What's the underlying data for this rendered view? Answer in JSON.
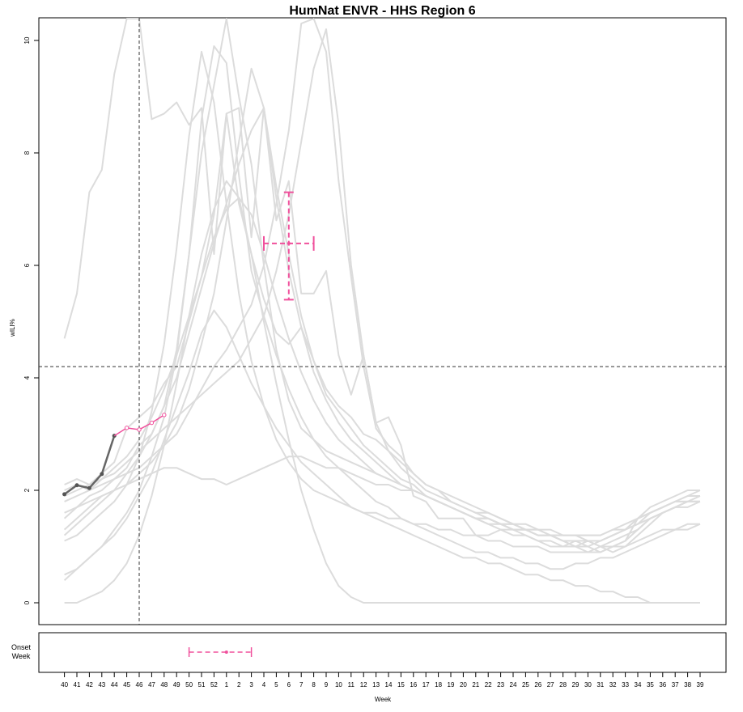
{
  "chart_data": {
    "type": "line",
    "title": "HumNat ENVR - HHS Region 6",
    "ylabel": "wILI%",
    "xlabel": "Week",
    "onset_label": [
      "Onset",
      "Week"
    ],
    "ylim": [
      0,
      10.3
    ],
    "yticks": [
      0,
      2,
      4,
      6,
      8,
      10
    ],
    "x_tick_labels": [
      "40",
      "41",
      "42",
      "43",
      "44",
      "45",
      "46",
      "47",
      "48",
      "49",
      "50",
      "51",
      "52",
      "1",
      "2",
      "3",
      "4",
      "5",
      "6",
      "7",
      "8",
      "9",
      "10",
      "11",
      "12",
      "13",
      "14",
      "15",
      "16",
      "17",
      "18",
      "19",
      "20",
      "21",
      "22",
      "23",
      "24",
      "25",
      "26",
      "27",
      "28",
      "29",
      "30",
      "31",
      "32",
      "33",
      "34",
      "35",
      "36",
      "37",
      "38",
      "39"
    ],
    "baseline": 4.2,
    "current_week": "46",
    "observed": {
      "name": "observed",
      "x": [
        "40",
        "41",
        "42",
        "43",
        "44"
      ],
      "y": [
        1.93,
        2.09,
        2.04,
        2.29,
        2.97
      ]
    },
    "forecast": {
      "name": "forecast",
      "x": [
        "44",
        "45",
        "46",
        "47",
        "48"
      ],
      "y": [
        2.97,
        3.11,
        3.08,
        3.2,
        3.34
      ]
    },
    "peak_forecast": {
      "week": "6",
      "week_low": "4",
      "week_high": "8",
      "value": 6.39,
      "value_low": 5.39,
      "value_high": 7.3
    },
    "onset_forecast": {
      "week": "1",
      "week_low": "50",
      "week_high": "3"
    },
    "historical_series": [
      {
        "x0": "40",
        "y": [
          4.7,
          5.5,
          7.3,
          7.7,
          9.4,
          10.5,
          11,
          8.6,
          8.7,
          8.9,
          8.5,
          8.8,
          6.2,
          8.7,
          8.8,
          6.5,
          8.8,
          6.8,
          7.5,
          5.5,
          5.5,
          5.9,
          4.4,
          3.7,
          4.4,
          3.2,
          3.3,
          2.8,
          1.9,
          1.8,
          1.5,
          1.5,
          1.5,
          1.2,
          1.2,
          1.3,
          1.3,
          1.2,
          1.1,
          1.1,
          1.0,
          1.1,
          1.0,
          0.9,
          1.0,
          1.1,
          1.5,
          1.6,
          1.7,
          1.8,
          1.8,
          1.9
        ]
      },
      {
        "x0": "40",
        "y": [
          2.1,
          2.2,
          2.1,
          2.3,
          2.5,
          3.1,
          3.3,
          3.5,
          3.9,
          4.2,
          5.0,
          5.8,
          6.9,
          8.7,
          7.1,
          6.2,
          5.4,
          4.8,
          4.6,
          4.9,
          4.3,
          3.8,
          3.5,
          3.3,
          3.0,
          2.9,
          2.7,
          2.5,
          2.3,
          2.1,
          2.0,
          1.8,
          1.7,
          1.6,
          1.6,
          1.5,
          1.4,
          1.4,
          1.3,
          1.3,
          1.2,
          1.2,
          1.1,
          1.1,
          1.2,
          1.3,
          1.5,
          1.6,
          1.7,
          1.8,
          1.9,
          2.0
        ]
      },
      {
        "x0": "40",
        "y": [
          1.5,
          1.7,
          1.9,
          2.0,
          2.2,
          2.4,
          2.8,
          3.0,
          3.5,
          4.5,
          6.2,
          8.0,
          9.2,
          10.5,
          9.0,
          7.8,
          6.0,
          4.5,
          3.6,
          3.1,
          2.9,
          2.7,
          2.6,
          2.5,
          2.4,
          2.3,
          2.2,
          2.1,
          2.0,
          1.9,
          1.8,
          1.7,
          1.6,
          1.5,
          1.5,
          1.4,
          1.3,
          1.3,
          1.2,
          1.2,
          1.1,
          1.1,
          1.1,
          1.0,
          1.1,
          1.2,
          1.3,
          1.5,
          1.6,
          1.7,
          1.8,
          1.8
        ]
      },
      {
        "x0": "40",
        "y": [
          1.8,
          1.9,
          2.0,
          2.1,
          2.2,
          2.3,
          2.4,
          2.6,
          2.8,
          3.0,
          3.4,
          3.8,
          4.2,
          4.5,
          4.9,
          5.3,
          6.0,
          7.1,
          8.4,
          10.3,
          10.5,
          9.8,
          7.5,
          5.8,
          4.2,
          3.1,
          2.8,
          2.6,
          2.3,
          2.1,
          2.0,
          1.9,
          1.8,
          1.7,
          1.6,
          1.5,
          1.4,
          1.3,
          1.2,
          1.2,
          1.1,
          1.0,
          1.1,
          1.0,
          0.9,
          1.0,
          1.2,
          1.4,
          1.6,
          1.7,
          1.8,
          1.8
        ]
      },
      {
        "x0": "40",
        "y": [
          1.3,
          1.5,
          1.7,
          1.9,
          2.0,
          2.1,
          2.3,
          2.5,
          2.8,
          3.2,
          3.8,
          4.6,
          5.5,
          6.8,
          8.2,
          9.5,
          8.8,
          7.4,
          6.2,
          5.1,
          4.3,
          3.7,
          3.4,
          3.1,
          2.8,
          2.6,
          2.4,
          2.2,
          2.1,
          1.9,
          1.8,
          1.7,
          1.6,
          1.5,
          1.4,
          1.3,
          1.2,
          1.2,
          1.1,
          1.0,
          1.0,
          1.0,
          0.9,
          1.0,
          1.0,
          1.1,
          1.3,
          1.5,
          1.6,
          1.7,
          1.8,
          1.8
        ]
      },
      {
        "x0": "40",
        "y": [
          2.0,
          2.1,
          2.0,
          2.2,
          2.3,
          2.5,
          2.7,
          2.9,
          3.1,
          3.3,
          3.5,
          3.7,
          3.9,
          4.1,
          4.3,
          4.7,
          5.1,
          5.9,
          6.9,
          8.2,
          9.5,
          10.2,
          8.5,
          6.0,
          4.4,
          3.2,
          2.7,
          2.4,
          2.2,
          2.0,
          1.9,
          1.8,
          1.7,
          1.6,
          1.5,
          1.4,
          1.3,
          1.3,
          1.2,
          1.2,
          1.1,
          1.0,
          1.0,
          1.1,
          1.2,
          1.3,
          1.5,
          1.7,
          1.8,
          1.9,
          2.0,
          2.0
        ]
      },
      {
        "x0": "40",
        "y": [
          0.4,
          0.6,
          0.8,
          1.0,
          1.3,
          1.6,
          2.0,
          2.6,
          3.3,
          4.4,
          6.2,
          8.6,
          9.9,
          9.6,
          7.6,
          5.9,
          5.1,
          4.4,
          3.8,
          3.3,
          2.9,
          2.6,
          2.4,
          2.2,
          2.0,
          1.8,
          1.7,
          1.5,
          1.4,
          1.3,
          1.2,
          1.1,
          1.0,
          0.9,
          0.9,
          0.8,
          0.8,
          0.7,
          0.7,
          0.6,
          0.6,
          0.7,
          0.7,
          0.8,
          0.8,
          0.9,
          1.0,
          1.1,
          1.2,
          1.3,
          1.3,
          1.4
        ]
      },
      {
        "x0": "40",
        "y": [
          1.2,
          1.4,
          1.6,
          1.8,
          2.0,
          2.3,
          2.6,
          3.0,
          3.5,
          4.0,
          4.8,
          5.6,
          6.4,
          7.1,
          7.8,
          8.4,
          8.8,
          7.2,
          5.9,
          4.9,
          4.1,
          3.6,
          3.2,
          2.9,
          2.7,
          2.5,
          2.3,
          2.1,
          2.0,
          1.9,
          1.8,
          1.7,
          1.6,
          1.5,
          1.4,
          1.4,
          1.3,
          1.3,
          1.2,
          1.2,
          1.1,
          1.1,
          1.1,
          1.1,
          1.2,
          1.3,
          1.4,
          1.6,
          1.7,
          1.8,
          1.9,
          1.9
        ]
      },
      {
        "x0": "40",
        "y": [
          0.0,
          0.0,
          0.1,
          0.2,
          0.4,
          0.7,
          1.2,
          1.9,
          2.8,
          3.9,
          5.1,
          6.2,
          7.0,
          7.5,
          7.2,
          6.2,
          5.0,
          3.9,
          2.9,
          2.0,
          1.3,
          0.7,
          0.3,
          0.1,
          0.0,
          0.0,
          0.0,
          0.0,
          0.0,
          0.0,
          0.0,
          0.0,
          0.0,
          0.0,
          0.0,
          0.0,
          0.0,
          0.0,
          0.0,
          0.0,
          0.0,
          0.0,
          0.0,
          0.0,
          0.0,
          0.0,
          0.0,
          0.0,
          0.0,
          0.0,
          0.0,
          0.0
        ]
      },
      {
        "x0": "40",
        "y": [
          0.5,
          0.6,
          0.8,
          1.0,
          1.2,
          1.5,
          1.9,
          2.3,
          2.9,
          3.5,
          4.1,
          4.8,
          5.2,
          4.9,
          4.4,
          3.9,
          3.5,
          3.1,
          2.8,
          2.5,
          2.3,
          2.1,
          1.9,
          1.7,
          1.6,
          1.5,
          1.4,
          1.3,
          1.2,
          1.1,
          1.0,
          0.9,
          0.8,
          0.8,
          0.7,
          0.7,
          0.6,
          0.5,
          0.5,
          0.4,
          0.4,
          0.3,
          0.3,
          0.2,
          0.2,
          0.1,
          0.1,
          0.0,
          0.0,
          0.0,
          0.0,
          0.0
        ]
      },
      {
        "x0": "40",
        "y": [
          1.6,
          1.7,
          1.8,
          1.9,
          2.0,
          2.1,
          2.2,
          2.3,
          2.4,
          2.4,
          2.3,
          2.2,
          2.2,
          2.1,
          2.2,
          2.3,
          2.4,
          2.5,
          2.6,
          2.6,
          2.5,
          2.4,
          2.4,
          2.3,
          2.2,
          2.1,
          2.1,
          2.0,
          2.0,
          1.9,
          1.8,
          1.7,
          1.6,
          1.5,
          1.5,
          1.4,
          1.4,
          1.3,
          1.3,
          1.2,
          1.2,
          1.2,
          1.2,
          1.2,
          1.3,
          1.4,
          1.5,
          1.6,
          1.7,
          1.8,
          1.8,
          1.8
        ]
      },
      {
        "x0": "40",
        "y": [
          1.1,
          1.2,
          1.4,
          1.6,
          1.8,
          2.1,
          2.6,
          3.4,
          4.6,
          6.3,
          8.3,
          9.8,
          8.9,
          7.1,
          5.5,
          4.3,
          3.5,
          2.9,
          2.5,
          2.2,
          2.0,
          1.9,
          1.8,
          1.7,
          1.6,
          1.6,
          1.5,
          1.5,
          1.4,
          1.4,
          1.3,
          1.3,
          1.2,
          1.2,
          1.1,
          1.1,
          1.0,
          1.0,
          1.0,
          0.9,
          0.9,
          0.9,
          0.9,
          0.9,
          1.0,
          1.0,
          1.1,
          1.2,
          1.3,
          1.3,
          1.4,
          1.4
        ]
      },
      {
        "x0": "40",
        "y": [
          1.9,
          2.0,
          2.1,
          2.2,
          2.4,
          2.6,
          2.9,
          3.3,
          3.8,
          4.4,
          5.1,
          5.8,
          6.5,
          7.0,
          7.2,
          6.9,
          6.2,
          5.4,
          4.7,
          4.1,
          3.6,
          3.2,
          2.9,
          2.7,
          2.5,
          2.3,
          2.2,
          2.1,
          2.0,
          1.9,
          1.8,
          1.7,
          1.6,
          1.5,
          1.5,
          1.4,
          1.4,
          1.3,
          1.3,
          1.2,
          1.2,
          1.2,
          1.2,
          1.2,
          1.3,
          1.3,
          1.4,
          1.5,
          1.6,
          1.7,
          1.7,
          1.8
        ]
      }
    ]
  }
}
